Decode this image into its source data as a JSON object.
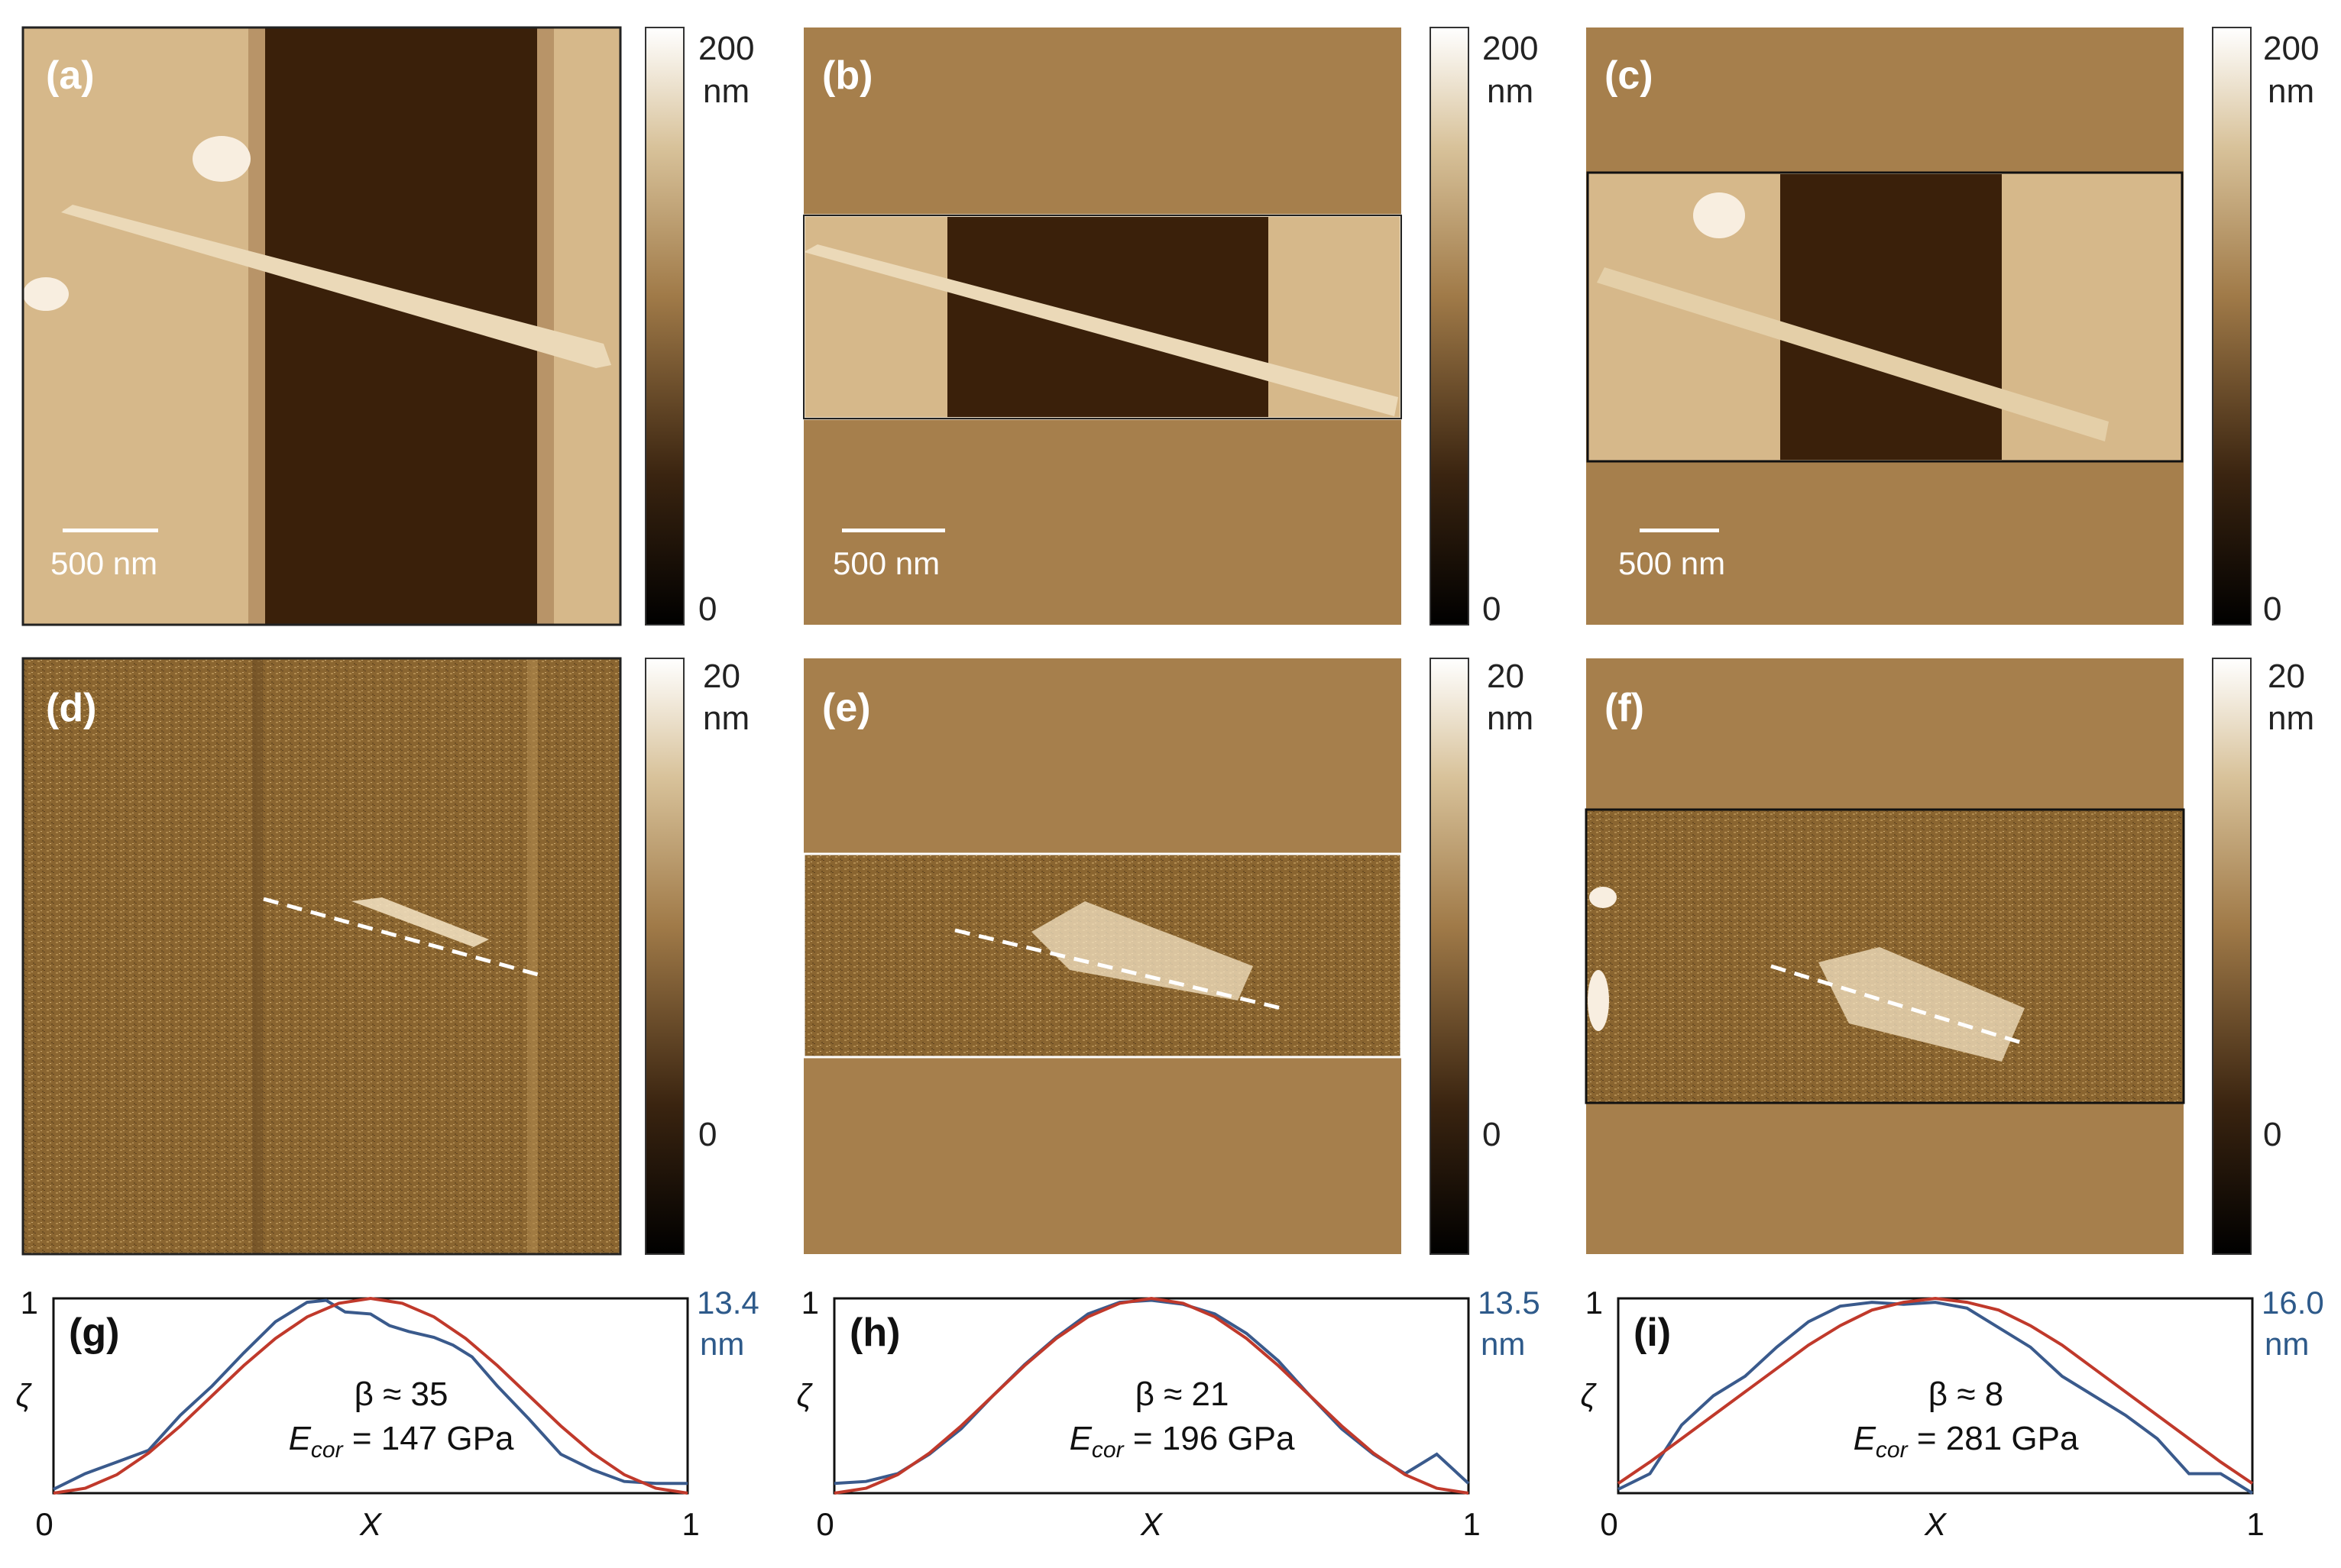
{
  "panels": {
    "a": {
      "label": "(a)",
      "scale_bar": "500 nm"
    },
    "b": {
      "label": "(b)",
      "scale_bar": "500 nm"
    },
    "c": {
      "label": "(c)",
      "scale_bar": "500 nm"
    },
    "d": {
      "label": "(d)"
    },
    "e": {
      "label": "(e)"
    },
    "f": {
      "label": "(f)"
    }
  },
  "colorbars": {
    "height": {
      "max": "200",
      "unit": "nm",
      "min": "0"
    },
    "error": {
      "max": "20",
      "unit": "nm",
      "min": "0"
    }
  },
  "colors": {
    "afm_substrate": "#a67f4c",
    "afm_high": "#f4e9d4",
    "afm_low": "#2e1a08",
    "fit_curve": "#c0392b",
    "data_curve": "#3a5a8c",
    "right_axis_text": "#2e5a8a"
  },
  "chart_data": [
    {
      "type": "line",
      "panel": "(g)",
      "xlabel": "X",
      "ylabel": "ζ",
      "xlim": [
        0,
        1
      ],
      "ylim": [
        0,
        1
      ],
      "x_ticks": [
        "0",
        "1"
      ],
      "y_ticks": [
        "1"
      ],
      "right_axis": {
        "value": "13.4",
        "unit": "nm"
      },
      "annotation": {
        "beta": "β ≈ 35",
        "e_cor_sym": "E",
        "e_cor_sub": "cor",
        "e_cor_val": " = 147 GPa"
      },
      "series": [
        {
          "x": [
            0,
            0.05,
            0.1,
            0.15,
            0.2,
            0.25,
            0.3,
            0.35,
            0.4,
            0.43,
            0.46,
            0.5,
            0.53,
            0.56,
            0.6,
            0.63,
            0.66,
            0.7,
            0.75,
            0.8,
            0.85,
            0.9,
            0.95,
            1.0
          ],
          "y": [
            0.02,
            0.1,
            0.16,
            0.22,
            0.4,
            0.55,
            0.72,
            0.88,
            0.98,
            0.99,
            0.93,
            0.92,
            0.86,
            0.83,
            0.8,
            0.76,
            0.7,
            0.55,
            0.38,
            0.2,
            0.12,
            0.06,
            0.05,
            0.05
          ]
        },
        {
          "x": [
            0,
            0.05,
            0.1,
            0.15,
            0.2,
            0.25,
            0.3,
            0.35,
            0.4,
            0.45,
            0.5,
            0.55,
            0.6,
            0.65,
            0.7,
            0.75,
            0.8,
            0.85,
            0.9,
            0.95,
            1.0
          ],
          "y": [
            0,
            0.025,
            0.095,
            0.206,
            0.345,
            0.5,
            0.655,
            0.794,
            0.905,
            0.975,
            1,
            0.975,
            0.905,
            0.794,
            0.655,
            0.5,
            0.345,
            0.206,
            0.095,
            0.025,
            0
          ]
        }
      ]
    },
    {
      "type": "line",
      "panel": "(h)",
      "xlabel": "X",
      "ylabel": "ζ",
      "xlim": [
        0,
        1
      ],
      "ylim": [
        0,
        1
      ],
      "x_ticks": [
        "0",
        "1"
      ],
      "y_ticks": [
        "1"
      ],
      "right_axis": {
        "value": "13.5",
        "unit": "nm"
      },
      "annotation": {
        "beta": "β ≈ 21",
        "e_cor_sym": "E",
        "e_cor_sub": "cor",
        "e_cor_val": " = 196 GPa"
      },
      "series": [
        {
          "x": [
            0,
            0.05,
            0.1,
            0.15,
            0.2,
            0.25,
            0.3,
            0.35,
            0.4,
            0.45,
            0.5,
            0.55,
            0.6,
            0.65,
            0.7,
            0.75,
            0.8,
            0.85,
            0.9,
            0.95,
            1.0
          ],
          "y": [
            0.05,
            0.06,
            0.1,
            0.2,
            0.33,
            0.5,
            0.66,
            0.8,
            0.92,
            0.98,
            0.99,
            0.97,
            0.92,
            0.82,
            0.68,
            0.5,
            0.33,
            0.2,
            0.1,
            0.2,
            0.05
          ]
        },
        {
          "x": [
            0,
            0.05,
            0.1,
            0.15,
            0.2,
            0.25,
            0.3,
            0.35,
            0.4,
            0.45,
            0.5,
            0.55,
            0.6,
            0.65,
            0.7,
            0.75,
            0.8,
            0.85,
            0.9,
            0.95,
            1.0
          ],
          "y": [
            0,
            0.025,
            0.095,
            0.206,
            0.345,
            0.5,
            0.655,
            0.794,
            0.905,
            0.975,
            1,
            0.975,
            0.905,
            0.794,
            0.655,
            0.5,
            0.345,
            0.206,
            0.095,
            0.025,
            0
          ]
        }
      ]
    },
    {
      "type": "line",
      "panel": "(i)",
      "xlabel": "X",
      "ylabel": "ζ",
      "xlim": [
        0,
        1
      ],
      "ylim": [
        0,
        1
      ],
      "x_ticks": [
        "0",
        "1"
      ],
      "y_ticks": [
        "1"
      ],
      "right_axis": {
        "value": "16.0",
        "unit": "nm"
      },
      "annotation": {
        "beta": "β ≈ 8",
        "e_cor_sym": "E",
        "e_cor_sub": "cor",
        "e_cor_val": " = 281 GPa"
      },
      "series": [
        {
          "x": [
            0,
            0.05,
            0.1,
            0.15,
            0.2,
            0.25,
            0.3,
            0.35,
            0.4,
            0.45,
            0.5,
            0.55,
            0.6,
            0.65,
            0.7,
            0.75,
            0.8,
            0.85,
            0.9,
            0.95,
            1.0
          ],
          "y": [
            0.02,
            0.1,
            0.35,
            0.5,
            0.6,
            0.75,
            0.88,
            0.96,
            0.98,
            0.97,
            0.98,
            0.95,
            0.85,
            0.75,
            0.6,
            0.5,
            0.4,
            0.28,
            0.1,
            0.1,
            0.0
          ]
        },
        {
          "x": [
            0,
            0.05,
            0.1,
            0.15,
            0.2,
            0.25,
            0.3,
            0.35,
            0.4,
            0.45,
            0.5,
            0.55,
            0.6,
            0.65,
            0.7,
            0.75,
            0.8,
            0.85,
            0.9,
            0.95,
            1.0
          ],
          "y": [
            0.05,
            0.16,
            0.28,
            0.4,
            0.52,
            0.64,
            0.76,
            0.86,
            0.94,
            0.98,
            1.0,
            0.98,
            0.94,
            0.86,
            0.76,
            0.64,
            0.52,
            0.4,
            0.28,
            0.16,
            0.05
          ]
        }
      ]
    }
  ]
}
